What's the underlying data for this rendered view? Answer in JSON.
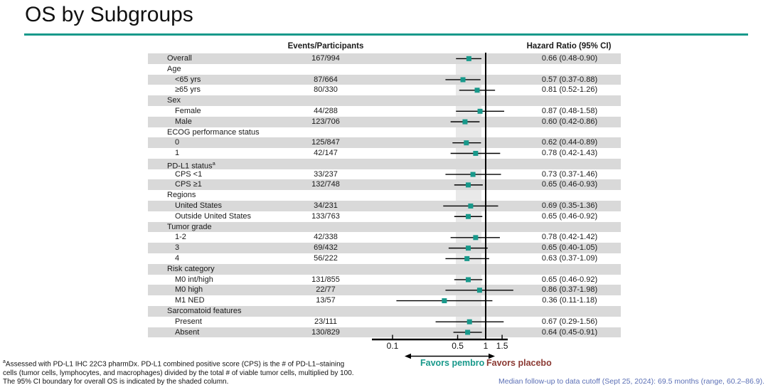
{
  "slide": {
    "title": "OS by Subgroups",
    "accent_color": "#18998b"
  },
  "table": {
    "events_header": "Events/Participants",
    "hr_header": "Hazard Ratio (95% CI)"
  },
  "chart_data": {
    "type": "forest",
    "title": "OS by Subgroups",
    "x_scale": "log10",
    "x_ticks": [
      "0.1",
      "0.5",
      "1",
      "1.5"
    ],
    "x_tick_values": [
      0.1,
      0.5,
      1,
      1.5
    ],
    "reference_line": 1.0,
    "shaded_band": {
      "low": 0.48,
      "high": 0.9
    },
    "marker_color": "#18998b",
    "row_shade_color": "#d9d9d9",
    "ci_band_color": "#e9e9e9",
    "favors_left": "Favors pembro",
    "favors_right": "Favors placebo",
    "favors_left_color": "#18998b",
    "favors_right_color": "#8b3a33",
    "rows": [
      {
        "label": "Overall",
        "events": "167/994",
        "hr": 0.66,
        "lo": 0.48,
        "hi": 0.9,
        "hr_text": "0.66 (0.48-0.90)"
      },
      {
        "label": "Age",
        "header": true
      },
      {
        "label": "<65 yrs",
        "indent": true,
        "events": "87/664",
        "hr": 0.57,
        "lo": 0.37,
        "hi": 0.88,
        "hr_text": "0.57 (0.37-0.88)"
      },
      {
        "label": "≥65 yrs",
        "indent": true,
        "events": "80/330",
        "hr": 0.81,
        "lo": 0.52,
        "hi": 1.26,
        "hr_text": "0.81 (0.52-1.26)"
      },
      {
        "label": "Sex",
        "header": true
      },
      {
        "label": "Female",
        "indent": true,
        "events": "44/288",
        "hr": 0.87,
        "lo": 0.48,
        "hi": 1.58,
        "hr_text": "0.87 (0.48-1.58)"
      },
      {
        "label": "Male",
        "indent": true,
        "events": "123/706",
        "hr": 0.6,
        "lo": 0.42,
        "hi": 0.86,
        "hr_text": "0.60 (0.42-0.86)"
      },
      {
        "label": "ECOG performance status",
        "header": true
      },
      {
        "label": "0",
        "indent": true,
        "events": "125/847",
        "hr": 0.62,
        "lo": 0.44,
        "hi": 0.89,
        "hr_text": "0.62 (0.44-0.89)"
      },
      {
        "label": "1",
        "indent": true,
        "events": "42/147",
        "hr": 0.78,
        "lo": 0.42,
        "hi": 1.43,
        "hr_text": "0.78 (0.42-1.43)"
      },
      {
        "label": "PD-L1 status",
        "sup": "a",
        "header": true
      },
      {
        "label": "CPS <1",
        "indent": true,
        "events": "33/237",
        "hr": 0.73,
        "lo": 0.37,
        "hi": 1.46,
        "hr_text": "0.73 (0.37-1.46)"
      },
      {
        "label": "CPS ≥1",
        "indent": true,
        "events": "132/748",
        "hr": 0.65,
        "lo": 0.46,
        "hi": 0.93,
        "hr_text": "0.65 (0.46-0.93)"
      },
      {
        "label": "Regions",
        "header": true
      },
      {
        "label": "United States",
        "indent": true,
        "events": "34/231",
        "hr": 0.69,
        "lo": 0.35,
        "hi": 1.36,
        "hr_text": "0.69 (0.35-1.36)"
      },
      {
        "label": "Outside United States",
        "indent": true,
        "events": "133/763",
        "hr": 0.65,
        "lo": 0.46,
        "hi": 0.92,
        "hr_text": "0.65 (0.46-0.92)"
      },
      {
        "label": "Tumor grade",
        "header": true
      },
      {
        "label": "1-2",
        "indent": true,
        "events": "42/338",
        "hr": 0.78,
        "lo": 0.42,
        "hi": 1.42,
        "hr_text": "0.78 (0.42-1.42)"
      },
      {
        "label": "3",
        "indent": true,
        "events": "69/432",
        "hr": 0.65,
        "lo": 0.4,
        "hi": 1.05,
        "hr_text": "0.65 (0.40-1.05)"
      },
      {
        "label": "4",
        "indent": true,
        "events": "56/222",
        "hr": 0.63,
        "lo": 0.37,
        "hi": 1.09,
        "hr_text": "0.63 (0.37-1.09)"
      },
      {
        "label": "Risk category",
        "header": true
      },
      {
        "label": "M0 int/high",
        "indent": true,
        "events": "131/855",
        "hr": 0.65,
        "lo": 0.46,
        "hi": 0.92,
        "hr_text": "0.65 (0.46-0.92)"
      },
      {
        "label": "M0 high",
        "indent": true,
        "events": "22/77",
        "hr": 0.86,
        "lo": 0.37,
        "hi": 1.98,
        "hr_text": "0.86 (0.37-1.98)"
      },
      {
        "label": "M1 NED",
        "indent": true,
        "events": "13/57",
        "hr": 0.36,
        "lo": 0.11,
        "hi": 1.18,
        "hr_text": "0.36 (0.11-1.18)"
      },
      {
        "label": "Sarcomatoid features",
        "header": true
      },
      {
        "label": "Present",
        "indent": true,
        "events": "23/111",
        "hr": 0.67,
        "lo": 0.29,
        "hi": 1.56,
        "hr_text": "0.67 (0.29-1.56)"
      },
      {
        "label": "Absent",
        "indent": true,
        "events": "130/829",
        "hr": 0.64,
        "lo": 0.45,
        "hi": 0.91,
        "hr_text": "0.64 (0.45-0.91)"
      }
    ]
  },
  "footnotes": {
    "sup": "a",
    "line1": "Assessed with PD-L1 IHC 22C3 pharmDx. PD-L1 combined positive score (CPS) is the # of PD-L1–staining",
    "line2": "cells (tumor cells, lymphocytes, and macrophages) divided by the total # of viable tumor cells, multiplied by 100.",
    "line3": "The 95% CI boundary for overall OS is indicated by the shaded column.",
    "median_followup": "Median follow-up to data cutoff (Sept 25, 2024): 69.5 months (range, 60.2–86.9).",
    "median_color": "#5b6fb5"
  }
}
